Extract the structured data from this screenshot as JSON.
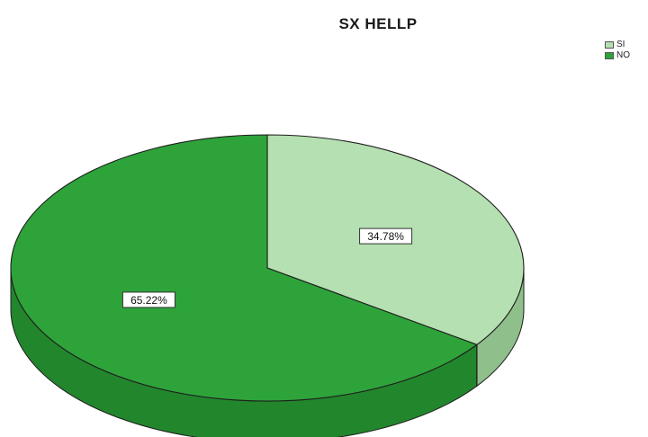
{
  "chart_data": {
    "type": "pie",
    "title": "SX HELLP",
    "categories": [
      "SI",
      "NO"
    ],
    "values": [
      34.78,
      65.22
    ],
    "data_labels": [
      "34.78%",
      "65.22%"
    ],
    "colors": [
      "#b5e0b1",
      "#2ea33a"
    ],
    "side_colors": [
      "#8fbf8b",
      "#22862c"
    ],
    "legend_position": "top-right",
    "style": "3d"
  }
}
